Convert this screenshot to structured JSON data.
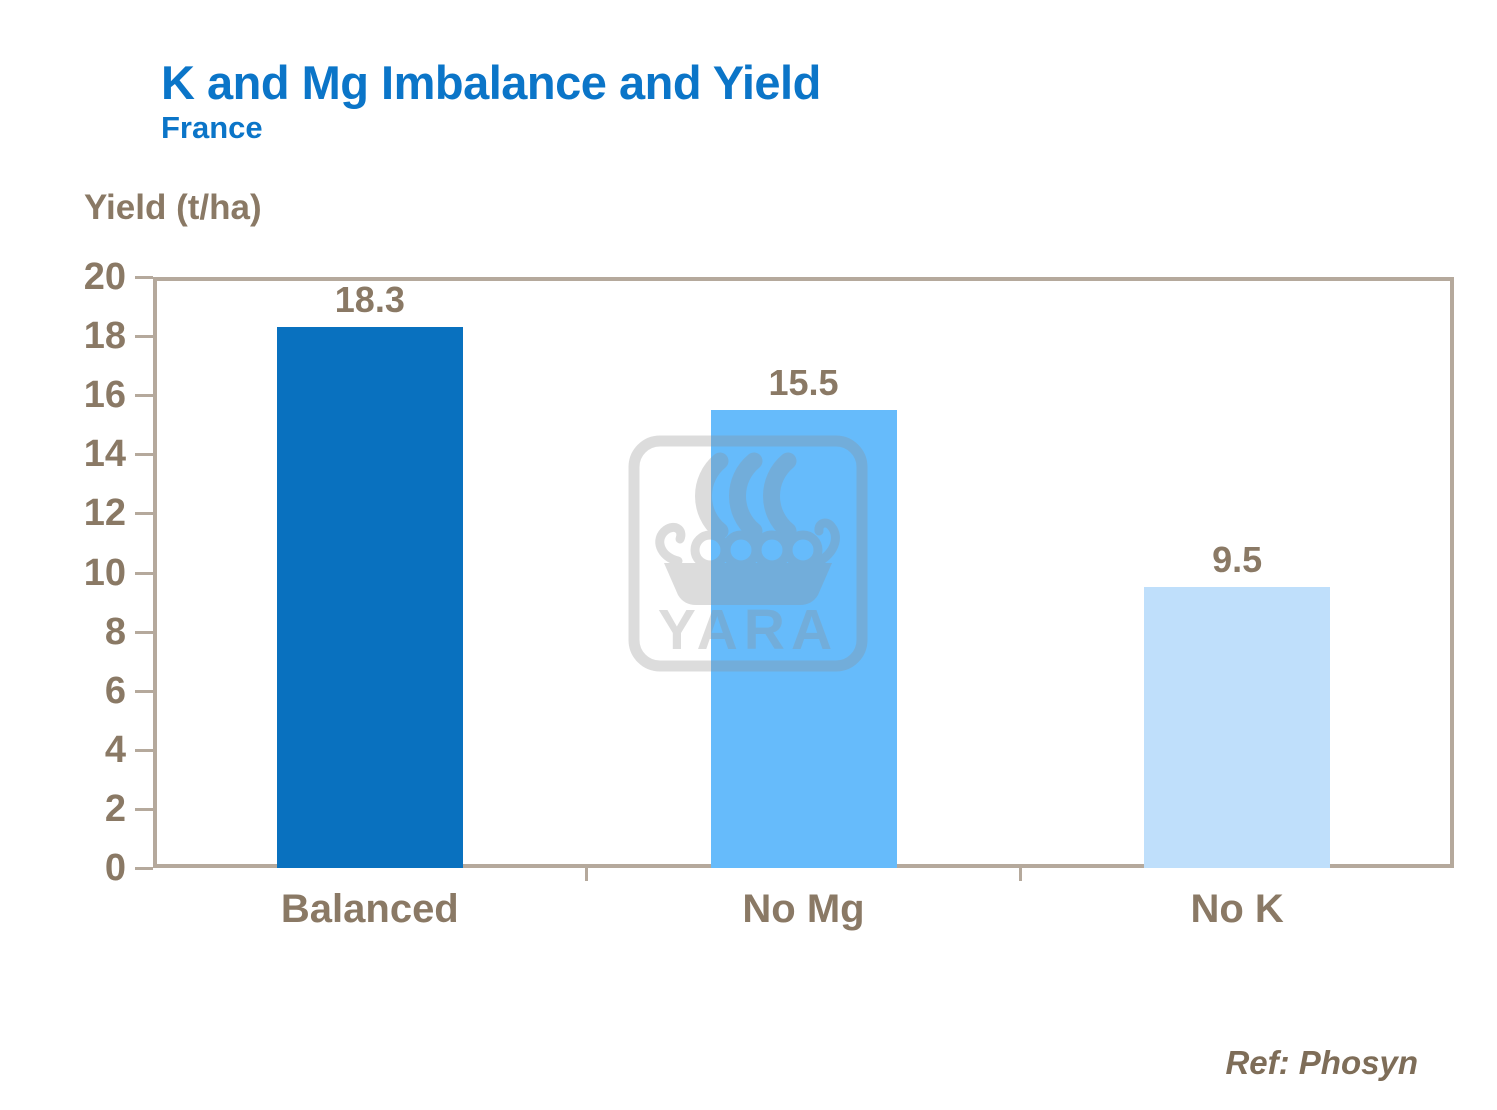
{
  "slide": {
    "title": "K and Mg Imbalance and Yield",
    "subtitle": "France",
    "axis_title": "Yield (t/ha)",
    "reference": "Ref: Phosyn",
    "watermark_text": "YARA"
  },
  "colors": {
    "title_blue": "#0B75C8",
    "label_brown": "#8A7965",
    "reference_brown": "#7E6D58",
    "frame_tan": "#B5A99C",
    "watermark_gray": "#8F8F8F",
    "bar_colors": [
      "#0971BF",
      "#66BBFB",
      "#BFDFFB"
    ]
  },
  "chart_data": {
    "type": "bar",
    "title": "K and Mg Imbalance and Yield",
    "subtitle": "France",
    "categories": [
      "Balanced",
      "No Mg",
      "No K"
    ],
    "values": [
      18.3,
      15.5,
      9.5
    ],
    "data_labels": [
      "18.3",
      "15.5",
      "9.5"
    ],
    "xlabel": "",
    "ylabel": "Yield (t/ha)",
    "ylim": [
      0,
      20
    ],
    "yticks": [
      0,
      2,
      4,
      6,
      8,
      10,
      12,
      14,
      16,
      18,
      20
    ],
    "grid": false,
    "legend": false,
    "annotations": [
      "Ref: Phosyn"
    ]
  }
}
